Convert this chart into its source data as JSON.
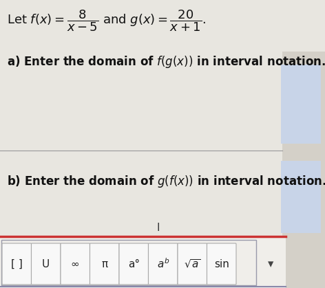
{
  "background_color": "#d4d0c8",
  "content_bg": "#e8e6e0",
  "title_line_plain": "Let ",
  "title_math": "$f(x) = \\dfrac{8}{x-5}$ and $g(x) = \\dfrac{20}{x+1}$.",
  "part_a_plain": "a) Enter the domain of ",
  "part_a_func": "$f(g(x))$",
  "part_a_end": " in interval notation.",
  "part_b_plain": "b) Enter the domain of ",
  "part_b_func": "$g(f(x))$",
  "part_b_end": " in interval notation.",
  "answer_box_color": "#c8d4e8",
  "toolbar_bg": "#f0eeea",
  "toolbar_top_border": "#cc3333",
  "toolbar_bottom_border": "#8888aa",
  "divider_color": "#999999",
  "cursor_label": "I",
  "text_color": "#111111",
  "btn_border_color": "#aaaaaa",
  "btn_bg": "#f8f8f8",
  "fig_width": 4.72,
  "fig_height": 4.19,
  "dpi": 100
}
